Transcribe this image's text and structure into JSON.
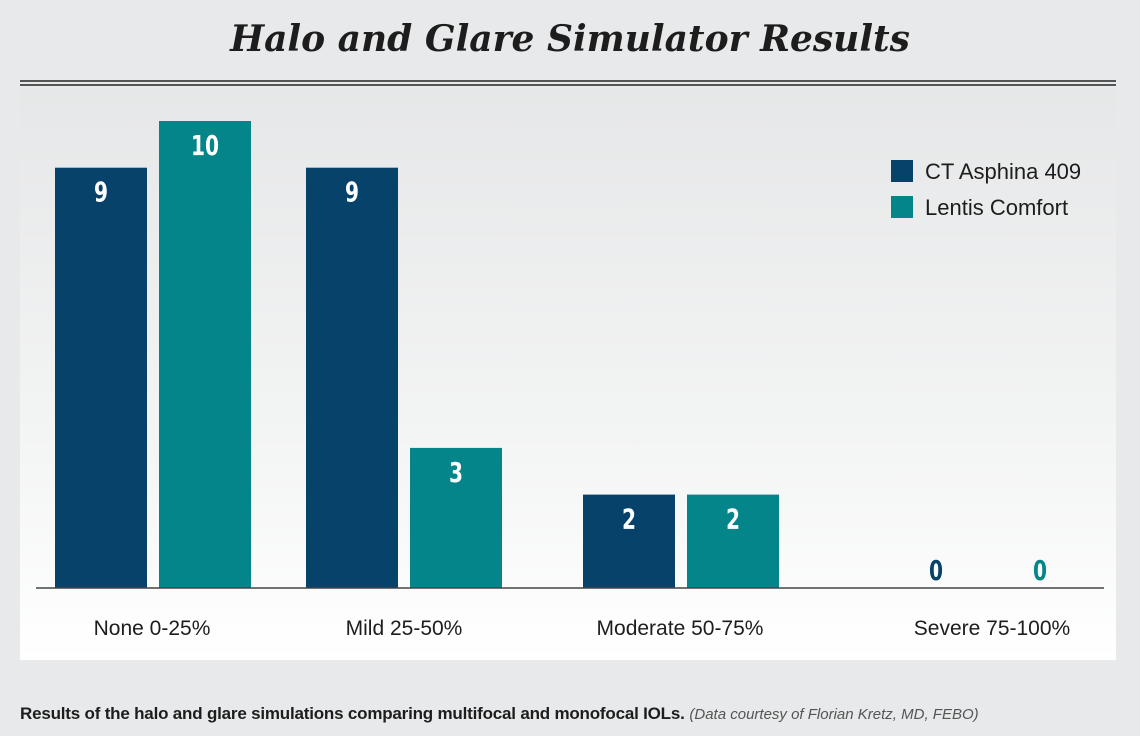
{
  "caption": {
    "main": "Results of the halo and glare simulations comparing multifocal and monofocal IOLs.",
    "note": "(Data courtesy of Florian Kretz, MD, FEBO)"
  },
  "chart_data": {
    "type": "bar",
    "title": "Halo and Glare Simulator Results",
    "xlabel": "",
    "ylabel": "",
    "categories": [
      "None 0-25%",
      "Mild 25-50%",
      "Moderate 50-75%",
      "Severe 75-100%"
    ],
    "series": [
      {
        "name": "CT Asphina 409",
        "values": [
          9,
          9,
          2,
          0
        ],
        "color": "#07426b"
      },
      {
        "name": "Lentis Comfort",
        "values": [
          10,
          3,
          2,
          0
        ],
        "color": "#04858a"
      }
    ],
    "ylim": [
      0,
      10
    ],
    "grid": false,
    "legend": "top-right",
    "data_labels": true,
    "label_color": "#ffffff"
  }
}
